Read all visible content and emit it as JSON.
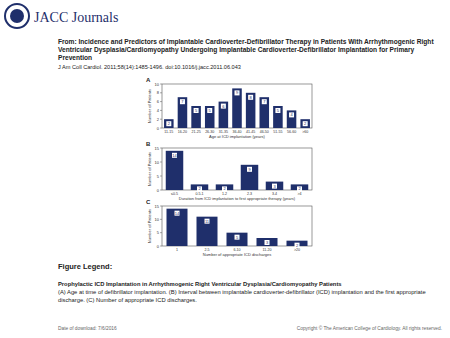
{
  "header": {
    "logo": "JACC Journals",
    "title": "From: Incidence and Predictors of Implantable Cardioverter-Defibrillator Therapy in Patients With Arrhythmogenic Right Ventricular Dysplasia/Cardiomyopathy Undergoing Implantable Cardioverter-Defibrillator Implantation for Primary Prevention",
    "citation": "J Am Coll Cardiol. 2011;58(14):1485-1496. doi:10.1016/j.jacc.2011.06.043"
  },
  "chart_data": [
    {
      "type": "bar",
      "title": "A",
      "x_label": "Age at ICD implantation (years)",
      "y_label": "Number of Patients",
      "categories": [
        "11-15",
        "16-20",
        "21-25",
        "26-30",
        "31-35",
        "36-40",
        "41-45",
        "46-50",
        "51-55",
        "56-60",
        ">60"
      ],
      "values": [
        2,
        7,
        5,
        5,
        6,
        9,
        8,
        7,
        5,
        4,
        2
      ],
      "color": "#1f2f6b",
      "ylim": [
        0,
        10
      ],
      "yticks": [
        0,
        2,
        4,
        6,
        8,
        10
      ],
      "data_labels": true
    },
    {
      "type": "bar",
      "title": "B",
      "x_label": "Duration from ICD implantation to first appropriate therapy (years)",
      "y_label": "Number of Patients",
      "categories": [
        "≤0.5",
        "0.5-1",
        "1-2",
        "2-3",
        "3-4",
        ">4"
      ],
      "values": [
        14,
        2,
        2,
        9,
        3,
        2
      ],
      "color": "#1f2f6b",
      "ylim": [
        0,
        15
      ],
      "yticks": [
        0,
        5,
        10,
        15
      ],
      "data_labels": true
    },
    {
      "type": "bar",
      "title": "C",
      "x_label": "Number of appropriate ICD discharges",
      "y_label": "Number of Patients",
      "categories": [
        "1",
        "2-5",
        "6-10",
        "11-20",
        ">20"
      ],
      "values": [
        14,
        11,
        5,
        3,
        2
      ],
      "color": "#1f2f6b",
      "ylim": [
        0,
        15
      ],
      "yticks": [
        0,
        5,
        10,
        15
      ],
      "data_labels": true
    }
  ],
  "legend": {
    "heading": "Figure Legend:",
    "title": "Prophylactic ICD Implantation in Arrhythmogenic Right Ventricular Dysplasia/Cardiomyopathy Patients",
    "text": "(A) Age at time of defibrillator implantation. (B) Interval between implantable cardioverter-defibrillator (ICD) implantation and the first appropriate discharge. (C) Number of appropriate ICD discharges."
  },
  "footer": {
    "date": "Date of download: 7/6/2016",
    "copyright": "Copyright © The American College of Cardiology. All rights reserved."
  }
}
